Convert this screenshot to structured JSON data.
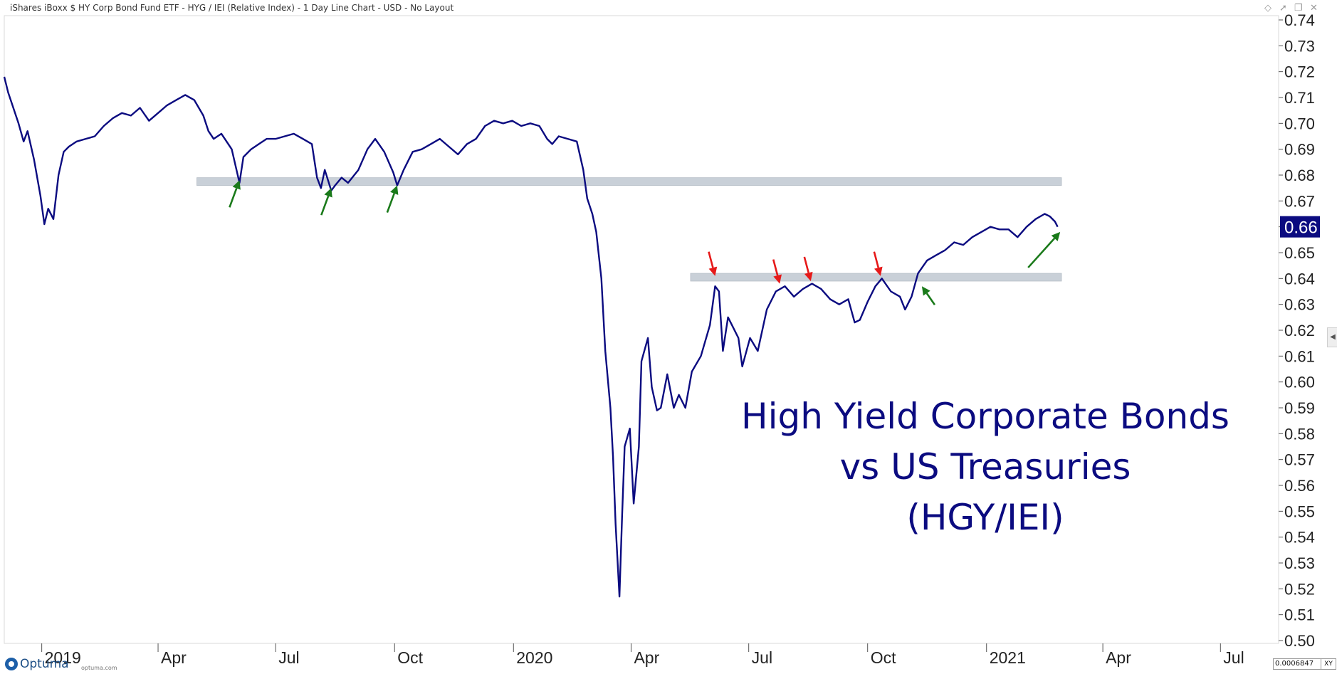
{
  "header": {
    "title": "iShares iBoxx $ HY Corp Bond Fund ETF - HYG / IEI (Relative Index) - 1 Day Line Chart - USD - No Layout"
  },
  "footer": {
    "logo_name": "Optuma",
    "logo_site": "optuma.com",
    "scale_value": "0.0006847",
    "xy_label": "XY"
  },
  "annotation": {
    "lines": [
      "High Yield Corporate Bonds",
      "vs US Treasuries",
      "(HGY/IEI)"
    ]
  },
  "icons": [
    "diamond-icon",
    "pin-icon",
    "restore-icon",
    "close-icon",
    "collapse-arrow-icon",
    "optuma-logo-icon"
  ],
  "colors": {
    "line": "#0b0b80",
    "band": "#c9d0d8",
    "up_arrow": "#1a7a1a",
    "down_arrow": "#e61919",
    "last_value_bg": "#0b0b80",
    "annotation_text": "#0b0b80"
  },
  "chart_data": {
    "type": "line",
    "title": "",
    "xlabel": "",
    "ylabel": "",
    "x_range": [
      "2018-12-03",
      "2021-08-15"
    ],
    "ylim": [
      0.5,
      0.74
    ],
    "y_ticks": [
      "0.50",
      "0.51",
      "0.52",
      "0.53",
      "0.54",
      "0.55",
      "0.56",
      "0.57",
      "0.58",
      "0.59",
      "0.60",
      "0.61",
      "0.62",
      "0.63",
      "0.64",
      "0.65",
      "0.66",
      "0.67",
      "0.68",
      "0.69",
      "0.70",
      "0.71",
      "0.72",
      "0.73",
      "0.74"
    ],
    "x_ticks": [
      {
        "date": "2019-01-01",
        "label": "2019"
      },
      {
        "date": "2019-04-01",
        "label": "Apr"
      },
      {
        "date": "2019-07-01",
        "label": "Jul"
      },
      {
        "date": "2019-10-01",
        "label": "Oct"
      },
      {
        "date": "2020-01-01",
        "label": "2020"
      },
      {
        "date": "2020-04-01",
        "label": "Apr"
      },
      {
        "date": "2020-07-01",
        "label": "Jul"
      },
      {
        "date": "2020-10-01",
        "label": "Oct"
      },
      {
        "date": "2021-01-01",
        "label": "2021"
      },
      {
        "date": "2021-04-01",
        "label": "Apr"
      },
      {
        "date": "2021-07-01",
        "label": "Jul"
      }
    ],
    "last_value_label": "0.66",
    "last_value": 0.66,
    "series": [
      {
        "values": [
          [
            "2018-12-03",
            0.718
          ],
          [
            "2018-12-06",
            0.712
          ],
          [
            "2018-12-10",
            0.706
          ],
          [
            "2018-12-14",
            0.7
          ],
          [
            "2018-12-18",
            0.693
          ],
          [
            "2018-12-21",
            0.697
          ],
          [
            "2018-12-26",
            0.686
          ],
          [
            "2018-12-31",
            0.672
          ],
          [
            "2019-01-03",
            0.661
          ],
          [
            "2019-01-06",
            0.667
          ],
          [
            "2019-01-10",
            0.663
          ],
          [
            "2019-01-14",
            0.68
          ],
          [
            "2019-01-18",
            0.689
          ],
          [
            "2019-01-22",
            0.691
          ],
          [
            "2019-01-28",
            0.693
          ],
          [
            "2019-02-04",
            0.694
          ],
          [
            "2019-02-11",
            0.695
          ],
          [
            "2019-02-18",
            0.699
          ],
          [
            "2019-02-25",
            0.702
          ],
          [
            "2019-03-04",
            0.704
          ],
          [
            "2019-03-11",
            0.703
          ],
          [
            "2019-03-18",
            0.706
          ],
          [
            "2019-03-25",
            0.701
          ],
          [
            "2019-04-01",
            0.704
          ],
          [
            "2019-04-08",
            0.707
          ],
          [
            "2019-04-15",
            0.709
          ],
          [
            "2019-04-22",
            0.711
          ],
          [
            "2019-04-29",
            0.709
          ],
          [
            "2019-05-06",
            0.703
          ],
          [
            "2019-05-10",
            0.697
          ],
          [
            "2019-05-14",
            0.694
          ],
          [
            "2019-05-20",
            0.696
          ],
          [
            "2019-05-28",
            0.69
          ],
          [
            "2019-06-03",
            0.677
          ],
          [
            "2019-06-06",
            0.687
          ],
          [
            "2019-06-12",
            0.69
          ],
          [
            "2019-06-18",
            0.692
          ],
          [
            "2019-06-24",
            0.694
          ],
          [
            "2019-07-01",
            0.694
          ],
          [
            "2019-07-08",
            0.695
          ],
          [
            "2019-07-15",
            0.696
          ],
          [
            "2019-07-22",
            0.694
          ],
          [
            "2019-07-29",
            0.692
          ],
          [
            "2019-08-02",
            0.679
          ],
          [
            "2019-08-05",
            0.675
          ],
          [
            "2019-08-08",
            0.682
          ],
          [
            "2019-08-13",
            0.674
          ],
          [
            "2019-08-16",
            0.676
          ],
          [
            "2019-08-21",
            0.679
          ],
          [
            "2019-08-26",
            0.677
          ],
          [
            "2019-09-03",
            0.682
          ],
          [
            "2019-09-10",
            0.69
          ],
          [
            "2019-09-16",
            0.694
          ],
          [
            "2019-09-23",
            0.689
          ],
          [
            "2019-09-30",
            0.681
          ],
          [
            "2019-10-03",
            0.676
          ],
          [
            "2019-10-08",
            0.682
          ],
          [
            "2019-10-15",
            0.689
          ],
          [
            "2019-10-22",
            0.69
          ],
          [
            "2019-10-29",
            0.692
          ],
          [
            "2019-11-05",
            0.694
          ],
          [
            "2019-11-12",
            0.691
          ],
          [
            "2019-11-19",
            0.688
          ],
          [
            "2019-11-26",
            0.692
          ],
          [
            "2019-12-03",
            0.694
          ],
          [
            "2019-12-10",
            0.699
          ],
          [
            "2019-12-17",
            0.701
          ],
          [
            "2019-12-24",
            0.7
          ],
          [
            "2019-12-31",
            0.701
          ],
          [
            "2020-01-07",
            0.699
          ],
          [
            "2020-01-14",
            0.7
          ],
          [
            "2020-01-21",
            0.699
          ],
          [
            "2020-01-27",
            0.694
          ],
          [
            "2020-01-31",
            0.692
          ],
          [
            "2020-02-05",
            0.695
          ],
          [
            "2020-02-12",
            0.694
          ],
          [
            "2020-02-19",
            0.693
          ],
          [
            "2020-02-24",
            0.682
          ],
          [
            "2020-02-27",
            0.671
          ],
          [
            "2020-03-02",
            0.665
          ],
          [
            "2020-03-05",
            0.658
          ],
          [
            "2020-03-09",
            0.64
          ],
          [
            "2020-03-12",
            0.612
          ],
          [
            "2020-03-16",
            0.59
          ],
          [
            "2020-03-18",
            0.571
          ],
          [
            "2020-03-20",
            0.545
          ],
          [
            "2020-03-23",
            0.517
          ],
          [
            "2020-03-25",
            0.548
          ],
          [
            "2020-03-27",
            0.575
          ],
          [
            "2020-03-31",
            0.582
          ],
          [
            "2020-04-03",
            0.553
          ],
          [
            "2020-04-07",
            0.575
          ],
          [
            "2020-04-09",
            0.608
          ],
          [
            "2020-04-14",
            0.617
          ],
          [
            "2020-04-17",
            0.598
          ],
          [
            "2020-04-21",
            0.589
          ],
          [
            "2020-04-24",
            0.59
          ],
          [
            "2020-04-29",
            0.603
          ],
          [
            "2020-05-04",
            0.59
          ],
          [
            "2020-05-08",
            0.595
          ],
          [
            "2020-05-13",
            0.59
          ],
          [
            "2020-05-18",
            0.604
          ],
          [
            "2020-05-25",
            0.61
          ],
          [
            "2020-06-01",
            0.622
          ],
          [
            "2020-06-05",
            0.637
          ],
          [
            "2020-06-08",
            0.635
          ],
          [
            "2020-06-11",
            0.612
          ],
          [
            "2020-06-15",
            0.625
          ],
          [
            "2020-06-18",
            0.622
          ],
          [
            "2020-06-23",
            0.617
          ],
          [
            "2020-06-26",
            0.606
          ],
          [
            "2020-07-02",
            0.617
          ],
          [
            "2020-07-08",
            0.612
          ],
          [
            "2020-07-15",
            0.628
          ],
          [
            "2020-07-22",
            0.635
          ],
          [
            "2020-07-29",
            0.637
          ],
          [
            "2020-08-05",
            0.633
          ],
          [
            "2020-08-12",
            0.636
          ],
          [
            "2020-08-19",
            0.638
          ],
          [
            "2020-08-26",
            0.636
          ],
          [
            "2020-09-02",
            0.632
          ],
          [
            "2020-09-09",
            0.63
          ],
          [
            "2020-09-16",
            0.632
          ],
          [
            "2020-09-21",
            0.623
          ],
          [
            "2020-09-25",
            0.624
          ],
          [
            "2020-10-01",
            0.631
          ],
          [
            "2020-10-07",
            0.637
          ],
          [
            "2020-10-12",
            0.64
          ],
          [
            "2020-10-19",
            0.635
          ],
          [
            "2020-10-26",
            0.633
          ],
          [
            "2020-10-30",
            0.628
          ],
          [
            "2020-11-04",
            0.633
          ],
          [
            "2020-11-09",
            0.642
          ],
          [
            "2020-11-16",
            0.647
          ],
          [
            "2020-11-23",
            0.649
          ],
          [
            "2020-11-30",
            0.651
          ],
          [
            "2020-12-07",
            0.654
          ],
          [
            "2020-12-14",
            0.653
          ],
          [
            "2020-12-21",
            0.656
          ],
          [
            "2020-12-28",
            0.658
          ],
          [
            "2021-01-04",
            0.66
          ],
          [
            "2021-01-11",
            0.659
          ],
          [
            "2021-01-18",
            0.659
          ],
          [
            "2021-01-25",
            0.656
          ],
          [
            "2021-02-01",
            0.66
          ],
          [
            "2021-02-08",
            0.663
          ],
          [
            "2021-02-15",
            0.665
          ],
          [
            "2021-02-19",
            0.664
          ],
          [
            "2021-02-23",
            0.662
          ],
          [
            "2021-02-25",
            0.66
          ]
        ]
      }
    ],
    "bands": [
      {
        "from": "2019-05-01",
        "to": "2021-02-28",
        "low": 0.676,
        "high": 0.679
      },
      {
        "from": "2020-05-17",
        "to": "2021-02-28",
        "low": 0.639,
        "high": 0.642
      }
    ],
    "markers": [
      {
        "kind": "up",
        "date": "2019-06-03",
        "value": 0.678
      },
      {
        "kind": "up",
        "date": "2019-08-13",
        "value": 0.675
      },
      {
        "kind": "up",
        "date": "2019-10-03",
        "value": 0.676
      },
      {
        "kind": "down",
        "date": "2020-06-05",
        "value": 0.641
      },
      {
        "kind": "down",
        "date": "2020-07-25",
        "value": 0.638
      },
      {
        "kind": "down",
        "date": "2020-08-18",
        "value": 0.639
      },
      {
        "kind": "down",
        "date": "2020-10-11",
        "value": 0.641
      },
      {
        "kind": "up",
        "date": "2020-11-12",
        "value": 0.637
      },
      {
        "kind": "up",
        "date": "2021-02-27",
        "value": 0.658
      }
    ]
  }
}
